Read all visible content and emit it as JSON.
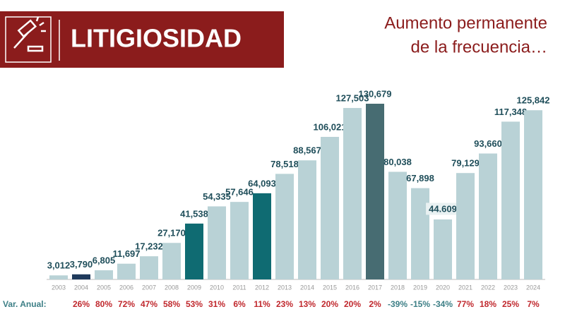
{
  "header": {
    "title": "LITIGIOSIDAD",
    "subtitle_lines": [
      "Aumento permanente",
      "de la frecuencia…"
    ]
  },
  "chart_data": {
    "type": "bar",
    "categories": [
      "2003",
      "2004",
      "2005",
      "2006",
      "2007",
      "2008",
      "2009",
      "2010",
      "2011",
      "2012",
      "2013",
      "2014",
      "2015",
      "2016",
      "2017",
      "2018",
      "2019",
      "2020",
      "2021",
      "2022",
      "2023",
      "2024"
    ],
    "values": [
      3012,
      3790,
      6805,
      11697,
      17232,
      27170,
      41538,
      54335,
      57646,
      64093,
      78518,
      88567,
      106021,
      127503,
      130679,
      80038,
      67898,
      44609,
      79129,
      93660,
      117348,
      125842
    ],
    "value_labels": [
      "3,012",
      "3,790",
      "6,805",
      "11,697",
      "17,232",
      "27,170",
      "41,538",
      "54,335",
      "57,646",
      "64,093",
      "78,518",
      "88,567",
      "106,021",
      "127,503",
      "130,679",
      "80,038",
      "67,898",
      "44.609",
      "79,129",
      "93,660",
      "117,348",
      "125,842"
    ],
    "colors": [
      "#b9d2d6",
      "#1f3a5c",
      "#b9d2d6",
      "#b9d2d6",
      "#b9d2d6",
      "#b9d2d6",
      "#0f6b72",
      "#b9d2d6",
      "#b9d2d6",
      "#0f6b72",
      "#b9d2d6",
      "#b9d2d6",
      "#b9d2d6",
      "#b9d2d6",
      "#476c72",
      "#b9d2d6",
      "#b9d2d6",
      "#b9d2d6",
      "#b9d2d6",
      "#b9d2d6",
      "#b9d2d6",
      "#b9d2d6"
    ],
    "annual_change": {
      "label": "Var. Anual:",
      "values": [
        null,
        26,
        80,
        72,
        47,
        58,
        53,
        31,
        6,
        11,
        23,
        13,
        20,
        20,
        2,
        -39,
        -15,
        -34,
        77,
        18,
        25,
        7
      ],
      "value_labels": [
        null,
        "26%",
        "80%",
        "72%",
        "47%",
        "58%",
        "53%",
        "31%",
        "6%",
        "11%",
        "23%",
        "13%",
        "20%",
        "20%",
        "2%",
        "-39%",
        "-15%",
        "-34%",
        "77%",
        "18%",
        "25%",
        "7%"
      ],
      "positive_color": "#c0282d",
      "negative_color": "#3d7f86"
    }
  }
}
